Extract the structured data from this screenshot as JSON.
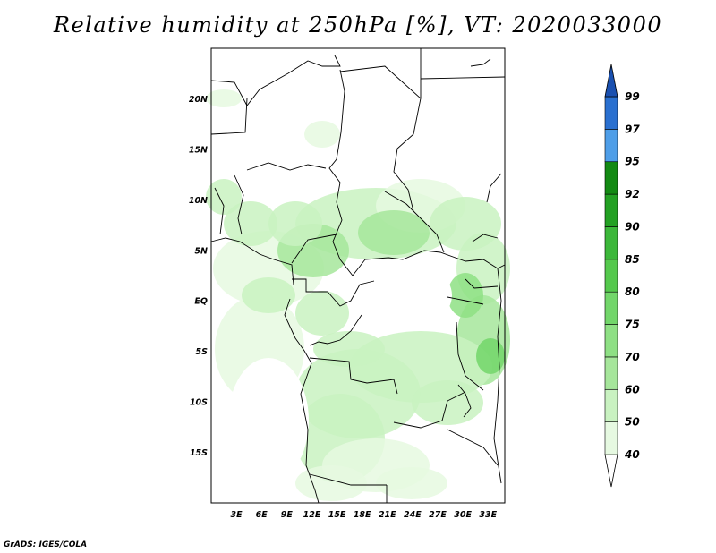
{
  "title": "Relative humidity at 250hPa [%], VT: 2020033000",
  "credit": "GrADS: IGES/COLA",
  "map": {
    "lon_range": [
      0,
      35
    ],
    "lat_range": [
      -20,
      25
    ],
    "lat_ticks": [
      {
        "value": 20,
        "label": "20N"
      },
      {
        "value": 15,
        "label": "15N"
      },
      {
        "value": 10,
        "label": "10N"
      },
      {
        "value": 5,
        "label": "5N"
      },
      {
        "value": 0,
        "label": "EQ"
      },
      {
        "value": -5,
        "label": "5S"
      },
      {
        "value": -10,
        "label": "10S"
      },
      {
        "value": -15,
        "label": "15S"
      }
    ],
    "lon_ticks": [
      {
        "value": 3,
        "label": "3E"
      },
      {
        "value": 6,
        "label": "6E"
      },
      {
        "value": 9,
        "label": "9E"
      },
      {
        "value": 12,
        "label": "12E"
      },
      {
        "value": 15,
        "label": "15E"
      },
      {
        "value": 18,
        "label": "18E"
      },
      {
        "value": 21,
        "label": "21E"
      },
      {
        "value": 24,
        "label": "24E"
      },
      {
        "value": 27,
        "label": "27E"
      },
      {
        "value": 30,
        "label": "30E"
      },
      {
        "value": 33,
        "label": "33E"
      }
    ]
  },
  "colorbar": {
    "levels": [
      "40",
      "50",
      "60",
      "70",
      "75",
      "80",
      "85",
      "90",
      "92",
      "95",
      "97",
      "99"
    ],
    "colors": [
      "#ffffff",
      "#e6f9e1",
      "#c9f2c1",
      "#a6e69b",
      "#8ee084",
      "#72d66a",
      "#55c94d",
      "#3cb83a",
      "#23a123",
      "#138a13",
      "#4e9ee8",
      "#2a70d0",
      "#1a50b0"
    ]
  },
  "colors": {
    "land_border": "#000000",
    "frame": "#000000"
  }
}
